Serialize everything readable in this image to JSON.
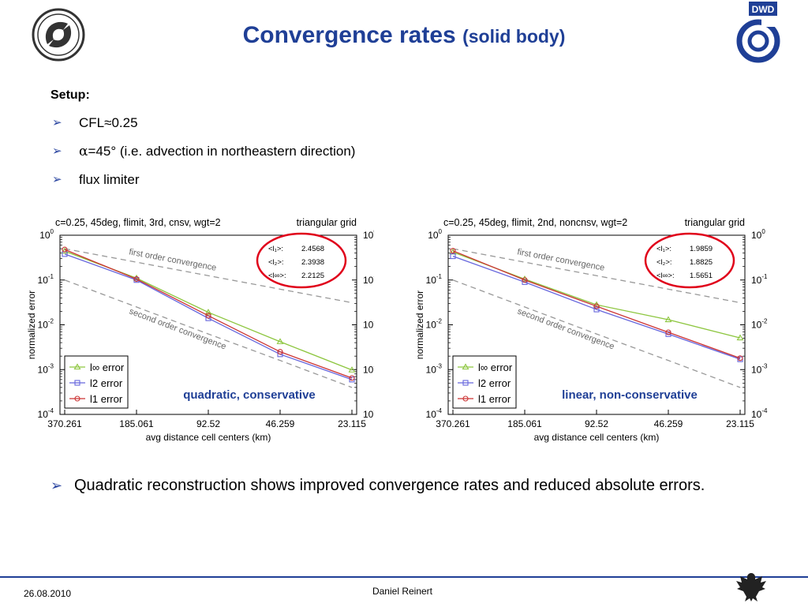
{
  "title": {
    "main": "Convergence rates",
    "sub": "(solid body)"
  },
  "logo_right_text": "DWD",
  "setup": {
    "heading": "Setup:",
    "items": [
      {
        "text": "CFL≈0.25"
      },
      {
        "symbol": "α",
        "text": "=45° (i.e. advection in northeastern direction)"
      },
      {
        "text": "flux limiter"
      }
    ]
  },
  "conclusion": "Quadratic reconstruction shows improved convergence rates and reduced absolute errors.",
  "footer": {
    "date": "26.08.2010",
    "author": "Daniel Reinert"
  },
  "colors": {
    "title": "#1f3f96",
    "linf": "#8dc63f",
    "l2": "#6666dd",
    "l1": "#cc3333",
    "annotation_text": "#1f3f96",
    "circle": "#e0001a",
    "ref_line": "#999999"
  },
  "chart_data": [
    {
      "type": "line",
      "title": "c=0.25, 45deg, flimit, 3rd, cnsv, wgt=2",
      "title_right": "triangular grid",
      "xlabel": "avg distance cell centers (km)",
      "ylabel": "normalized error",
      "x": [
        370.261,
        185.061,
        92.52,
        46.259,
        23.115
      ],
      "x_tick_labels": [
        "370.261",
        "185.061",
        "92.52",
        "46.259",
        "23.115"
      ],
      "y_scale": "log",
      "ylim": [
        0.0001,
        1
      ],
      "y_ticks": [
        0,
        -1,
        -2,
        -3,
        -4
      ],
      "series": [
        {
          "name": "l∞ error",
          "values": [
            0.44,
            0.11,
            0.019,
            0.0042,
            0.00098
          ]
        },
        {
          "name": "l2 error",
          "values": [
            0.38,
            0.1,
            0.014,
            0.0022,
            0.0006
          ]
        },
        {
          "name": "l1 error",
          "values": [
            0.48,
            0.105,
            0.016,
            0.0025,
            0.00065
          ]
        }
      ],
      "reference_lines": [
        {
          "label": "first order convergence",
          "values": [
            0.5,
            0.25,
            0.125,
            0.0625,
            0.0312
          ]
        },
        {
          "label": "second order convergence",
          "values": [
            0.1,
            0.025,
            0.00625,
            0.0016,
            0.0004
          ]
        }
      ],
      "rates": [
        {
          "label": "<l₁>:",
          "value": "2.4568"
        },
        {
          "label": "<l₂>:",
          "value": "2.3938"
        },
        {
          "label": "<l∞>:",
          "value": "2.2125"
        }
      ],
      "annotation": "quadratic, conservative",
      "legend_position": "bottom-left"
    },
    {
      "type": "line",
      "title": "c=0.25, 45deg, flimit, 2nd, noncnsv, wgt=2",
      "title_right": "triangular grid",
      "xlabel": "avg distance cell centers (km)",
      "ylabel": "normalized error",
      "x": [
        370.261,
        185.061,
        92.52,
        46.259,
        23.115
      ],
      "x_tick_labels": [
        "370.261",
        "185.061",
        "92.52",
        "46.259",
        "23.115"
      ],
      "y_scale": "log",
      "ylim": [
        0.0001,
        1
      ],
      "y_ticks": [
        0,
        -1,
        -2,
        -3,
        -4
      ],
      "series": [
        {
          "name": "l∞ error",
          "values": [
            0.42,
            0.105,
            0.028,
            0.013,
            0.0051
          ]
        },
        {
          "name": "l2 error",
          "values": [
            0.34,
            0.09,
            0.022,
            0.0062,
            0.0017
          ]
        },
        {
          "name": "l1 error",
          "values": [
            0.45,
            0.1,
            0.026,
            0.0068,
            0.0018
          ]
        }
      ],
      "reference_lines": [
        {
          "label": "first order convergence",
          "values": [
            0.5,
            0.25,
            0.125,
            0.0625,
            0.0312
          ]
        },
        {
          "label": "second order convergence",
          "values": [
            0.1,
            0.025,
            0.00625,
            0.0016,
            0.0004
          ]
        }
      ],
      "rates": [
        {
          "label": "<l₁>:",
          "value": "1.9859"
        },
        {
          "label": "<l₂>:",
          "value": "1.8825"
        },
        {
          "label": "<l∞>:",
          "value": "1.5651"
        }
      ],
      "annotation": "linear, non-conservative",
      "legend_position": "bottom-left"
    }
  ]
}
